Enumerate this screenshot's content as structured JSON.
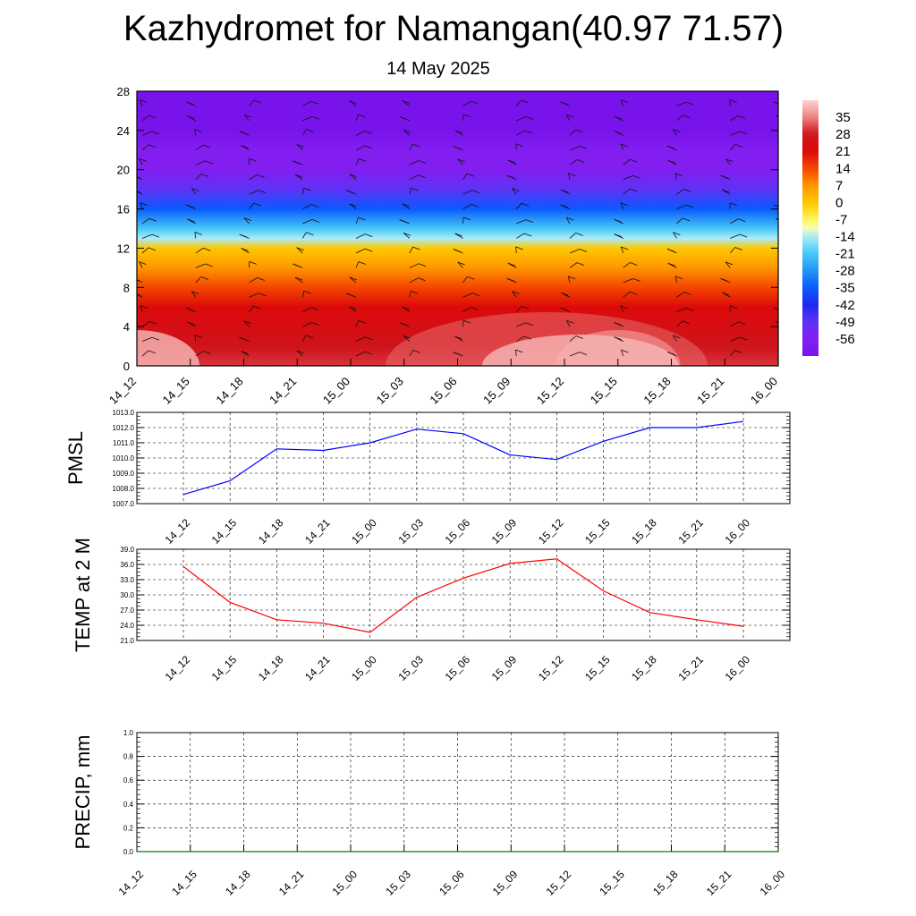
{
  "title": "Kazhydromet for Namangan(40.97 71.57)",
  "subtitle": "14 May 2025",
  "colors": {
    "pmsl_line": "#0000ff",
    "temp_line": "#ff0000",
    "precip_line": "#008000",
    "grid": "#000000"
  },
  "chart_data": [
    {
      "type": "heatmap",
      "name_note": "",
      "x": [
        "14_12",
        "14_15",
        "14_18",
        "14_21",
        "15_00",
        "15_03",
        "15_06",
        "15_09",
        "15_12",
        "15_15",
        "15_18",
        "15_21",
        "16_00"
      ],
      "xticks": [
        "14_12",
        "14_15",
        "14_18",
        "14_21",
        "15_00",
        "15_03",
        "15_06",
        "15_09",
        "15_12",
        "15_15",
        "15_18",
        "15_21",
        "16_00"
      ],
      "yticks": [
        "0",
        "4",
        "8",
        "12",
        "16",
        "20",
        "24",
        "28"
      ],
      "ylim": [
        0,
        28
      ],
      "colorbar_labels": [
        "35",
        "28",
        "21",
        "14",
        "7",
        "0",
        "-7",
        "-14",
        "-21",
        "-28",
        "-35",
        "-42",
        "-49",
        "-56"
      ],
      "colorbar_range": [
        -63,
        42
      ],
      "temperature_profile": [
        {
          "y": 0,
          "value": 30
        },
        {
          "y": 2,
          "value": 27
        },
        {
          "y": 4,
          "value": 24
        },
        {
          "y": 6,
          "value": 21
        },
        {
          "y": 8,
          "value": 14
        },
        {
          "y": 10,
          "value": 7
        },
        {
          "y": 12,
          "value": 0
        },
        {
          "y": 13,
          "value": -14
        },
        {
          "y": 14,
          "value": -21
        },
        {
          "y": 16,
          "value": -35
        },
        {
          "y": 18,
          "value": -49
        },
        {
          "y": 20,
          "value": -56
        },
        {
          "y": 22,
          "value": -56
        },
        {
          "y": 24,
          "value": -63
        },
        {
          "y": 28,
          "value": -63
        }
      ]
    },
    {
      "type": "line",
      "x": [
        "14_12",
        "14_15",
        "14_18",
        "14_21",
        "15_00",
        "15_03",
        "15_06",
        "15_09",
        "15_12",
        "15_15",
        "15_18",
        "15_21",
        "16_00"
      ],
      "series": [
        {
          "values": [
            1007.6,
            1008.5,
            1010.6,
            1010.5,
            1011.0,
            1011.9,
            1011.6,
            1010.2,
            1009.9,
            1011.1,
            1012.0,
            1012.0,
            1012.4
          ]
        }
      ],
      "ylabel": "PMSL",
      "ylim": [
        1007.0,
        1013.0
      ],
      "yticks": [
        "1007.0",
        "1008.0",
        "1009.0",
        "1010.0",
        "1011.0",
        "1012.0",
        "1013.0"
      ],
      "grid": true
    },
    {
      "type": "line",
      "x": [
        "14_12",
        "14_15",
        "14_18",
        "14_21",
        "15_00",
        "15_03",
        "15_06",
        "15_09",
        "15_12",
        "15_15",
        "15_18",
        "15_21",
        "16_00"
      ],
      "series": [
        {
          "values": [
            35.6,
            28.5,
            25.1,
            24.4,
            22.6,
            29.5,
            33.3,
            36.2,
            37.1,
            30.8,
            26.5,
            25.1,
            23.8
          ]
        }
      ],
      "ylabel": "TEMP at 2 M",
      "ylim": [
        21.0,
        39.0
      ],
      "yticks": [
        "21.0",
        "24.0",
        "27.0",
        "30.0",
        "33.0",
        "36.0",
        "39.0"
      ],
      "grid": true
    },
    {
      "type": "line",
      "x": [
        "14_12",
        "14_15",
        "14_18",
        "14_21",
        "15_00",
        "15_03",
        "15_06",
        "15_09",
        "15_12",
        "15_15",
        "15_18",
        "15_21",
        "16_00"
      ],
      "series": [
        {
          "values": [
            0,
            0,
            0,
            0,
            0,
            0,
            0,
            0,
            0,
            0,
            0,
            0,
            0
          ]
        }
      ],
      "ylabel": "PRECIP, mm",
      "ylim": [
        0.0,
        1.0
      ],
      "yticks": [
        "0.0",
        "0.2",
        "0.4",
        "0.6",
        "0.8",
        "1.0"
      ],
      "grid": true
    }
  ]
}
